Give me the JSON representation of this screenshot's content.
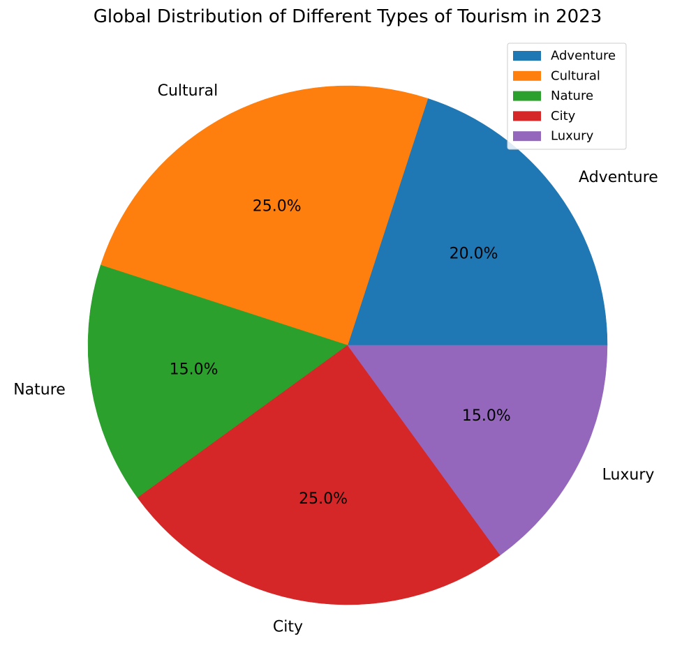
{
  "chart_data": {
    "type": "pie",
    "title": "Global Distribution of Different Types of Tourism in 2023",
    "categories": [
      "Adventure",
      "Cultural",
      "Nature",
      "City",
      "Luxury"
    ],
    "values": [
      20,
      25,
      15,
      25,
      15
    ],
    "percent_labels": [
      "20.0%",
      "25.0%",
      "15.0%",
      "25.0%",
      "15.0%"
    ],
    "colors": [
      "#1f77b4",
      "#ff7f0e",
      "#2ca02c",
      "#d62728",
      "#9467bd"
    ],
    "start_angle_deg": 0,
    "direction": "counterclockwise",
    "legend": {
      "position": "top-right",
      "entries": [
        "Adventure",
        "Cultural",
        "Nature",
        "City",
        "Luxury"
      ]
    }
  }
}
